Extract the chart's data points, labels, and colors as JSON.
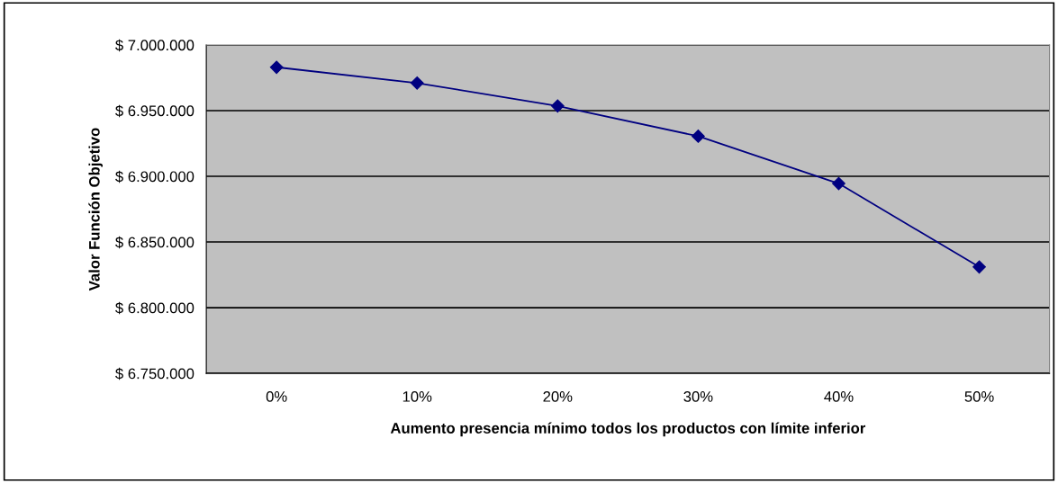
{
  "chart_data": {
    "type": "line",
    "xlabel": "Aumento presencia mínimo todos los productos con límite inferior",
    "ylabel": "Valor Función Objetivo",
    "categories": [
      "0%",
      "10%",
      "20%",
      "30%",
      "40%",
      "50%"
    ],
    "series": [
      {
        "color": "#000080",
        "values": [
          6983000,
          6971000,
          6953500,
          6930500,
          6894500,
          6831000
        ]
      }
    ],
    "ylim": [
      6750000,
      7000000
    ],
    "yticks": [
      {
        "value": 6750000,
        "label": "$ 6.750.000"
      },
      {
        "value": 6800000,
        "label": "$ 6.800.000"
      },
      {
        "value": 6850000,
        "label": "$ 6.850.000"
      },
      {
        "value": 6900000,
        "label": "$ 6.900.000"
      },
      {
        "value": 6950000,
        "label": "$ 6.950.000"
      },
      {
        "value": 7000000,
        "label": "$ 7.000.000"
      }
    ],
    "grid": "y",
    "marker": "diamond",
    "line_style": "solid"
  }
}
